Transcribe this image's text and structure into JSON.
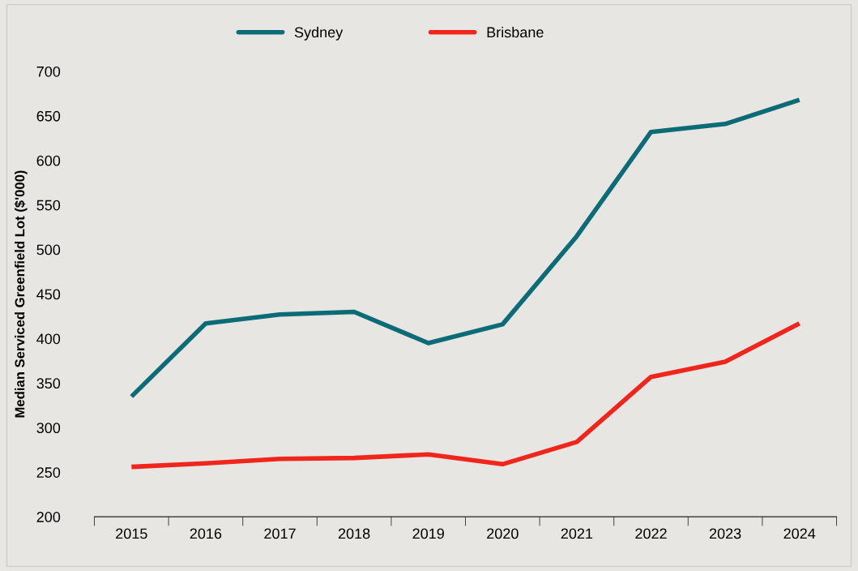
{
  "chart_data": {
    "type": "line",
    "ylabel": "Median Serviced Greenfield Lot ($'000)",
    "categories": [
      "2015",
      "2016",
      "2017",
      "2018",
      "2019",
      "2020",
      "2021",
      "2022",
      "2023",
      "2024"
    ],
    "series": [
      {
        "name": "Sydney",
        "color": "#0b6b76",
        "values": [
          335,
          417,
          427,
          430,
          395,
          416,
          515,
          632,
          641,
          668
        ]
      },
      {
        "name": "Brisbane",
        "color": "#f0261c",
        "values": [
          256,
          260,
          265,
          266,
          270,
          259,
          284,
          357,
          374,
          417
        ]
      }
    ],
    "ylim": [
      200,
      700
    ],
    "yticks": [
      200,
      250,
      300,
      350,
      400,
      450,
      500,
      550,
      600,
      650,
      700
    ],
    "grid": false,
    "legend": "top",
    "marker": "none",
    "line_style": "solid"
  }
}
